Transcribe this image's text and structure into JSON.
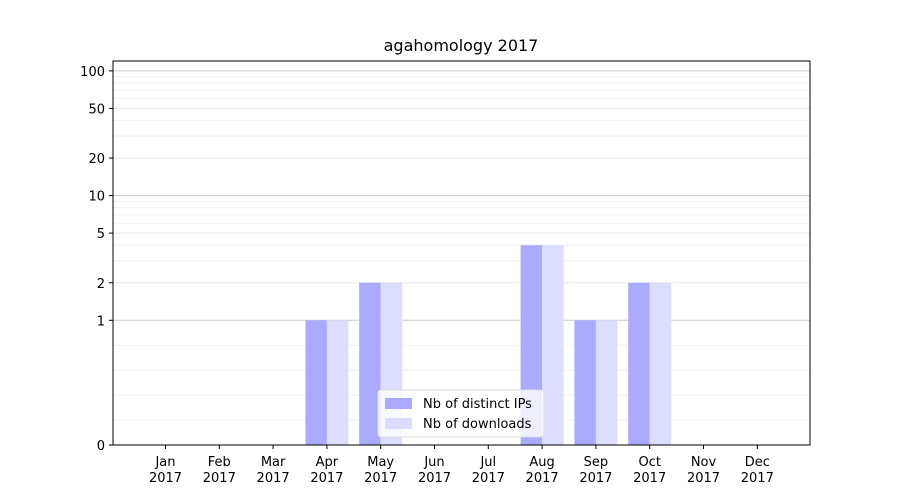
{
  "chart_data": {
    "type": "bar",
    "title": "agahomology 2017",
    "xlabel": "",
    "ylabel": "",
    "y_scale": "symlog",
    "ylim": [
      0,
      120
    ],
    "y_ticks": [
      0,
      1,
      2,
      5,
      10,
      20,
      50,
      100
    ],
    "grid": "horizontal",
    "legend_position": "bottom-center",
    "categories": [
      "Jan\n2017",
      "Feb\n2017",
      "Mar\n2017",
      "Apr\n2017",
      "May\n2017",
      "Jun\n2017",
      "Jul\n2017",
      "Aug\n2017",
      "Sep\n2017",
      "Oct\n2017",
      "Nov\n2017",
      "Dec\n2017"
    ],
    "series": [
      {
        "name": "Nb of distinct IPs",
        "color": "#aaaaff",
        "values": [
          0,
          0,
          0,
          1,
          2,
          0,
          0,
          4,
          1,
          2,
          0,
          0
        ]
      },
      {
        "name": "Nb of downloads",
        "color": "#ddddff",
        "values": [
          0,
          0,
          0,
          1,
          2,
          0,
          0,
          4,
          1,
          2,
          0,
          0
        ]
      }
    ]
  }
}
